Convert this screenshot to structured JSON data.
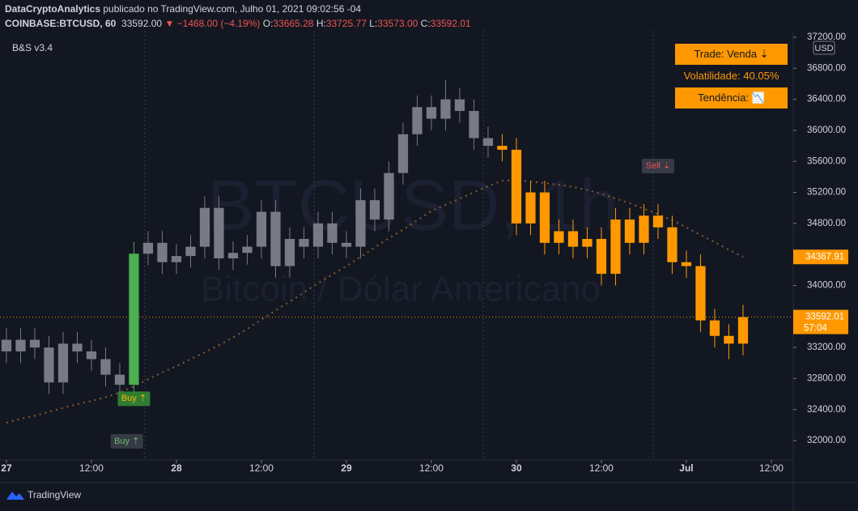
{
  "header": {
    "publisher": "DataCryptoAnalytics",
    "published": "publicado no TradingView.com, Julho 01, 2021 09:02:56 -04",
    "symbol": "COINBASE:BTCUSD, 60",
    "price": "33592.00",
    "change": "▼ −1468.00 (−4.19%)",
    "ohlc": [
      {
        "label": "O:",
        "value": "33665.28"
      },
      {
        "label": "H:",
        "value": "33725.77"
      },
      {
        "label": "L:",
        "value": "33573.00"
      },
      {
        "label": "C:",
        "value": "33592.01"
      }
    ]
  },
  "indicator": "B&S v3.4",
  "watermark": {
    "symbol": "BTCUSD, 1h",
    "description": "Bitcoin / Dólar Americano"
  },
  "info_box": [
    "Trade: Venda ⇣",
    "Volatilidade: 40.05%",
    "Tendência: 📉"
  ],
  "footer": "TradingView",
  "chart_data": {
    "type": "candlestick",
    "currency": "USD",
    "xlim": [
      -0.91,
      111.09
    ],
    "xticks": [
      {
        "value": 0,
        "label": "27"
      },
      {
        "value": 12,
        "label": "12:00"
      },
      {
        "value": 24,
        "label": "28"
      },
      {
        "value": 36,
        "label": "12:00"
      },
      {
        "value": 48,
        "label": "29"
      },
      {
        "value": 60,
        "label": "12:00"
      },
      {
        "value": 72,
        "label": "30"
      },
      {
        "value": 84,
        "label": "12:00"
      },
      {
        "value": 96,
        "label": "Jul"
      },
      {
        "value": 108,
        "label": "12:00"
      }
    ],
    "ylim": [
      31750,
      37284
    ],
    "yticks": [
      {
        "value": 37200,
        "label": "37200.00"
      },
      {
        "value": 36800,
        "label": "36800.00"
      },
      {
        "value": 36400,
        "label": "36400.00"
      },
      {
        "value": 36000,
        "label": "36000.00"
      },
      {
        "value": 35600,
        "label": "35600.00"
      },
      {
        "value": 35200,
        "label": "35200.00"
      },
      {
        "value": 34800,
        "label": "34800.00"
      },
      {
        "value": 34400,
        "label": "34400.00"
      },
      {
        "value": 34000,
        "label": "34000.00"
      },
      {
        "value": 33600,
        "label": "33600.00"
      },
      {
        "value": 33200,
        "label": "33200.00"
      },
      {
        "value": 32800,
        "label": "32800.00"
      },
      {
        "value": 32400,
        "label": "32400.00"
      },
      {
        "value": 32000,
        "label": "32000.00"
      }
    ],
    "x": [
      0,
      2,
      4,
      6,
      8,
      10,
      12,
      14,
      16,
      18,
      20,
      22,
      24,
      26,
      28,
      30,
      32,
      34,
      36,
      38,
      40,
      42,
      44,
      46,
      48,
      50,
      52,
      54,
      56,
      58,
      60,
      62,
      64,
      66,
      68,
      70,
      72,
      74,
      76,
      78,
      80,
      82,
      84,
      86,
      88,
      90,
      92,
      94,
      96,
      98,
      100,
      102,
      104
    ],
    "open": [
      33300,
      33150,
      33300,
      33200,
      32750,
      33250,
      33150,
      33050,
      32850,
      32720,
      34410,
      34550,
      34300,
      34380,
      34500,
      35000,
      34350,
      34420,
      34500,
      34950,
      34250,
      34600,
      34500,
      34800,
      34550,
      34500,
      35100,
      34850,
      35450,
      35950,
      36300,
      36150,
      36400,
      36250,
      35900,
      35800,
      35750,
      34800,
      35200,
      34550,
      34700,
      34500,
      34600,
      34150,
      34850,
      34550,
      34900,
      34750,
      34300,
      34250,
      33550,
      33350,
      33250
    ],
    "high": [
      33450,
      33450,
      33450,
      33350,
      33400,
      33400,
      33300,
      33200,
      33000,
      34560,
      34700,
      34700,
      34530,
      34650,
      35150,
      35150,
      34570,
      34650,
      35100,
      35100,
      34750,
      34750,
      34950,
      34950,
      34700,
      35250,
      35250,
      35600,
      36100,
      36450,
      36450,
      36650,
      36550,
      36400,
      36050,
      35950,
      35900,
      35350,
      35350,
      34850,
      34850,
      34750,
      34750,
      35000,
      35000,
      35050,
      35050,
      34900,
      34450,
      34400,
      33700,
      33500,
      33750
    ],
    "low": [
      33000,
      33000,
      33050,
      32600,
      32600,
      33000,
      32900,
      32700,
      32570,
      32570,
      34260,
      34150,
      34150,
      34230,
      34350,
      34200,
      34200,
      34270,
      34350,
      34100,
      34100,
      34350,
      34350,
      34400,
      34350,
      34350,
      34700,
      34700,
      35300,
      35800,
      36000,
      36000,
      36100,
      35750,
      35650,
      35600,
      34650,
      34650,
      34400,
      34400,
      34350,
      34350,
      34000,
      34000,
      34400,
      34400,
      34600,
      34150,
      34100,
      33400,
      33200,
      33050,
      33100
    ],
    "close": [
      33150,
      33300,
      33200,
      32750,
      33250,
      33150,
      33050,
      32850,
      32720,
      34410,
      34550,
      34300,
      34380,
      34500,
      35000,
      34350,
      34420,
      34500,
      34950,
      34250,
      34600,
      34500,
      34800,
      34550,
      34500,
      35100,
      34850,
      35450,
      35950,
      36300,
      36150,
      36400,
      36250,
      35900,
      35800,
      35750,
      34800,
      35200,
      34550,
      34700,
      34500,
      34600,
      34150,
      34850,
      34550,
      34900,
      34750,
      34300,
      34250,
      33550,
      33350,
      33250,
      33592
    ],
    "colors": [
      "#787b86",
      "#787b86",
      "#787b86",
      "#787b86",
      "#787b86",
      "#787b86",
      "#787b86",
      "#787b86",
      "#787b86",
      "#4caf50",
      "#787b86",
      "#787b86",
      "#787b86",
      "#787b86",
      "#787b86",
      "#787b86",
      "#787b86",
      "#787b86",
      "#787b86",
      "#787b86",
      "#787b86",
      "#787b86",
      "#787b86",
      "#787b86",
      "#787b86",
      "#787b86",
      "#787b86",
      "#787b86",
      "#787b86",
      "#787b86",
      "#787b86",
      "#787b86",
      "#787b86",
      "#787b86",
      "#787b86",
      "#ff9800",
      "#ff9800",
      "#ff9800",
      "#ff9800",
      "#ff9800",
      "#ff9800",
      "#ff9800",
      "#ff9800",
      "#ff9800",
      "#ff9800",
      "#ff9800",
      "#ff9800",
      "#ff9800",
      "#ff9800",
      "#ff9800",
      "#ff9800",
      "#ff9800",
      "#ff9800"
    ],
    "moving_average": {
      "color": "#8d5a2b",
      "values": [
        32230,
        32280,
        32320,
        32370,
        32420,
        32470,
        32510,
        32560,
        32620,
        32700,
        32790,
        32880,
        32960,
        33050,
        33140,
        33230,
        33330,
        33440,
        33560,
        33680,
        33790,
        33910,
        34030,
        34140,
        34250,
        34370,
        34490,
        34610,
        34720,
        34840,
        34960,
        35040,
        35120,
        35200,
        35280,
        35350,
        35360,
        35340,
        35320,
        35300,
        35270,
        35230,
        35180,
        35120,
        35060,
        34990,
        34920,
        34840,
        34750,
        34650,
        34560,
        34460,
        34370
      ]
    },
    "price_labels": [
      {
        "value": 34367.91,
        "label": "34367.91"
      },
      {
        "value": 33592.01,
        "label": "33592.01",
        "countdown": "57:04"
      }
    ],
    "signals": [
      {
        "text": "Buy ⇡",
        "x": 18,
        "price": 32540,
        "color": "#2e7d32"
      },
      {
        "text": "Buy ⇡",
        "x": 17,
        "price": 31990,
        "color": "#363a45"
      },
      {
        "text": "Sell ⇣",
        "x": 92,
        "price": 35540,
        "color": "#363a45"
      }
    ]
  }
}
